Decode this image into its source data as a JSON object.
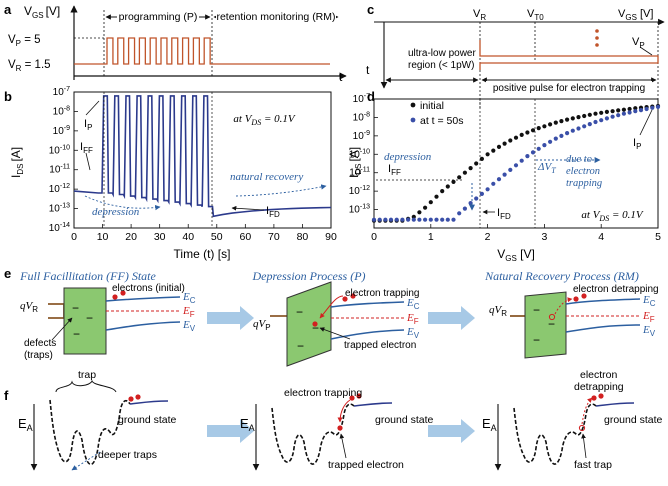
{
  "panel_labels": {
    "a": "a",
    "b": "b",
    "c": "c",
    "d": "d",
    "e": "e",
    "f": "f"
  },
  "colors": {
    "pulse": "#c0542a",
    "curve": "#2c3a8c",
    "band": "#2c5fa0",
    "barrier": "#8bc870",
    "dot_red": "#d22020",
    "dot_black": "#111111",
    "dot_blue": "#3a4fa8",
    "arrow": "#a7c9e6",
    "annot": "#2c5fa0"
  },
  "panel_a": {
    "ylabel": "V",
    "ylabel_sub": "GS",
    "yunit": "[V]",
    "vp_label": "V",
    "vp_sub": "P",
    "vp_value": " = 5",
    "vr_label": "V",
    "vr_sub": "R",
    "vr_value": " = 1.5",
    "t_label": "t",
    "programming": "programming (P)",
    "retention": "retention monitoring (RM)"
  },
  "panel_b": {
    "ylabel": "I",
    "ylabel_sub": "DS",
    "yunit": "[A]",
    "xlabel": "Time (t) [s]",
    "condition": "at V",
    "condition_sub": "DS",
    "condition_value": " = 0.1V",
    "ip": "I",
    "ip_sub": "P",
    "iff": "I",
    "iff_sub": "FF",
    "ifd": "I",
    "ifd_sub": "FD",
    "depression": "depression",
    "natural_recovery": "natural recovery"
  },
  "panel_c": {
    "vr": "V",
    "vr_sub": "R",
    "vt0": "V",
    "vt0_sub": "T0",
    "vgs": "V",
    "vgs_sub": "GS",
    "vgs_unit": " [V]",
    "vp": "V",
    "vp_sub": "P",
    "t_label": "t",
    "low_power_1": "ultra-low power",
    "low_power_2": "region (< 1pW)",
    "positive_pulse": "positive pulse for electron trapping"
  },
  "panel_d": {
    "ylabel": "I",
    "ylabel_sub": "DS",
    "yunit": "[A]",
    "xlabel": "V",
    "xlabel_sub": "GS",
    "xunit": " [V]",
    "legend_initial": "initial",
    "legend_t50": "at t =  50s",
    "iff": "I",
    "iff_sub": "FF",
    "ifd": "I",
    "ifd_sub": "FD",
    "ip": "I",
    "ip_sub": "P",
    "depression": "depression",
    "delta_vt": "ΔV",
    "delta_vt_sub": "T",
    "due_to_1": "due to",
    "due_to_2": "electron",
    "due_to_3": "trapping",
    "condition": "at V",
    "condition_sub": "DS",
    "condition_value": " = 0.1V"
  },
  "panel_e": {
    "title_ff": "Full Facillitation (FF) State",
    "title_p": "Depression Process (P)",
    "title_rm": "Natural Recovery Process (RM)",
    "electrons_initial": "electrons (initial)",
    "defects_1": "defects",
    "defects_2": "(traps)",
    "electron_trapping": "electron trapping",
    "trapped_electron": "trapped electron",
    "electron_detrapping": "electron detrapping",
    "ec": "E",
    "ec_sub": "C",
    "ef": "E",
    "ef_sub": "F",
    "ev": "E",
    "ev_sub": "V",
    "qvr": "qV",
    "qvr_sub": "R",
    "qvp": "qV",
    "qvp_sub": "P",
    "minus": "−"
  },
  "panel_f": {
    "ea": "E",
    "ea_sub": "A",
    "trap": "trap",
    "ground_state": "ground state",
    "deeper_traps": "deeper traps",
    "electron_trapping": "electron trapping",
    "trapped_electron": "trapped electron",
    "electron_detrapping_1": "electron",
    "electron_detrapping_2": "detrapping",
    "fast_trap": "fast trap"
  },
  "chart_data": [
    {
      "type": "line",
      "panel": "a",
      "title": "",
      "xlabel": "t",
      "ylabel": "VGS [V]",
      "levels": {
        "VP": 5,
        "VR": 1.5
      },
      "pulse_count": 10,
      "phases": [
        "programming (P)",
        "retention monitoring (RM)"
      ]
    },
    {
      "type": "line",
      "panel": "b",
      "title": "",
      "xlabel": "Time (t) [s]",
      "ylabel": "IDS [A]",
      "y_scale": "log",
      "xlim": [
        0,
        90
      ],
      "ylim_exp": [
        -14,
        -7
      ],
      "x_ticks": [
        0,
        10,
        20,
        30,
        40,
        50,
        60,
        70,
        80,
        90
      ],
      "y_tick_exps": [
        -14,
        -13,
        -12,
        -11,
        -10,
        -9,
        -8,
        -7
      ],
      "tick_base": "10",
      "phases": {
        "FF_end_s": 9.5,
        "programming": [
          9.5,
          48.5
        ],
        "recovery": [
          48.5,
          90
        ]
      },
      "pulses": 10,
      "peak_log10_A": -7.2,
      "base_log10_A_start": -12.2,
      "base_log10_A_end": -12.9,
      "recovery_log10_A": [
        -13.4,
        -12.9
      ],
      "annotations": [
        "IP",
        "IFF",
        "IFD",
        "depression",
        "natural recovery"
      ]
    },
    {
      "type": "scatter",
      "panel": "d",
      "title": "",
      "xlabel": "VGS [V]",
      "ylabel": "IDS [A]",
      "y_scale": "log",
      "xlim": [
        0,
        5
      ],
      "ylim_exp": [
        -14,
        -7
      ],
      "x_ticks": [
        0,
        1,
        2,
        3,
        4,
        5
      ],
      "y_tick_exps": [
        -13,
        -12,
        -11,
        -10,
        -9,
        -8,
        -7
      ],
      "tick_base": "10",
      "series": [
        {
          "name": "initial",
          "x": [
            0.0,
            0.1,
            0.2,
            0.3,
            0.4,
            0.5,
            0.6,
            0.7,
            0.8,
            0.9,
            1.0,
            1.1,
            1.2,
            1.3,
            1.4,
            1.5,
            1.6,
            1.7,
            1.8,
            1.9,
            2.0,
            2.1,
            2.2,
            2.3,
            2.4,
            2.5,
            2.6,
            2.7,
            2.8,
            2.9,
            3.0,
            3.1,
            3.2,
            3.3,
            3.4,
            3.5,
            3.6,
            3.7,
            3.8,
            3.9,
            4.0,
            4.1,
            4.2,
            4.3,
            4.4,
            4.5,
            4.6,
            4.7,
            4.8,
            4.9,
            5.0
          ],
          "log10_IDS": [
            -13.6,
            -13.6,
            -13.6,
            -13.6,
            -13.6,
            -13.6,
            -13.5,
            -13.4,
            -13.15,
            -12.9,
            -12.6,
            -12.3,
            -12.0,
            -11.75,
            -11.5,
            -11.25,
            -11.0,
            -10.75,
            -10.5,
            -10.25,
            -10.0,
            -9.8,
            -9.6,
            -9.42,
            -9.25,
            -9.1,
            -8.95,
            -8.82,
            -8.7,
            -8.58,
            -8.48,
            -8.38,
            -8.28,
            -8.2,
            -8.12,
            -8.05,
            -7.98,
            -7.92,
            -7.86,
            -7.8,
            -7.75,
            -7.7,
            -7.66,
            -7.62,
            -7.58,
            -7.54,
            -7.5,
            -7.47,
            -7.44,
            -7.41,
            -7.38
          ]
        },
        {
          "name": "at t = 50s",
          "x": [
            0.0,
            0.1,
            0.2,
            0.3,
            0.4,
            0.5,
            0.6,
            0.7,
            0.8,
            0.9,
            1.0,
            1.1,
            1.2,
            1.3,
            1.4,
            1.5,
            1.6,
            1.7,
            1.8,
            1.9,
            2.0,
            2.1,
            2.2,
            2.3,
            2.4,
            2.5,
            2.6,
            2.7,
            2.8,
            2.9,
            3.0,
            3.1,
            3.2,
            3.3,
            3.4,
            3.5,
            3.6,
            3.7,
            3.8,
            3.9,
            4.0,
            4.1,
            4.2,
            4.3,
            4.4,
            4.5,
            4.6,
            4.7,
            4.8,
            4.9,
            5.0
          ],
          "log10_IDS": [
            -13.55,
            -13.55,
            -13.55,
            -13.55,
            -13.55,
            -13.55,
            -13.55,
            -13.55,
            -13.55,
            -13.55,
            -13.55,
            -13.55,
            -13.55,
            -13.55,
            -13.55,
            -13.2,
            -12.95,
            -12.65,
            -12.4,
            -12.15,
            -11.9,
            -11.6,
            -11.35,
            -11.1,
            -10.85,
            -10.6,
            -10.35,
            -10.1,
            -9.9,
            -9.7,
            -9.5,
            -9.32,
            -9.15,
            -9.0,
            -8.85,
            -8.72,
            -8.6,
            -8.48,
            -8.36,
            -8.25,
            -8.15,
            -8.05,
            -7.96,
            -7.88,
            -7.8,
            -7.73,
            -7.66,
            -7.6,
            -7.54,
            -7.48,
            -7.43
          ]
        }
      ],
      "annotations": [
        "IFF",
        "IFD",
        "IP",
        "depression",
        "ΔVT due to electron trapping",
        "at VDS = 0.1V"
      ]
    }
  ]
}
